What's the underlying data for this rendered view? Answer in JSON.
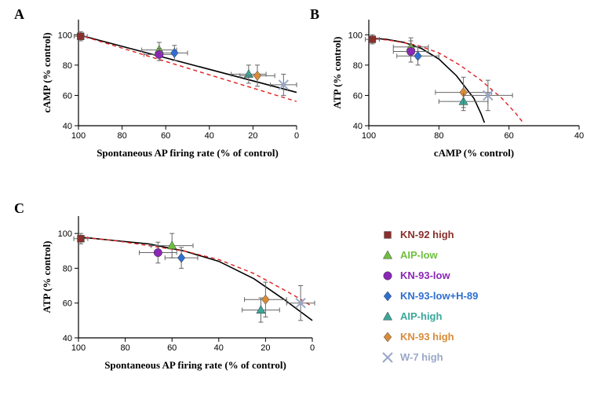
{
  "panels": {
    "A": "A",
    "B": "B",
    "C": "C"
  },
  "axis_label_fontsize": 13,
  "tick_fontsize": 11,
  "series": {
    "KN-92 high": {
      "label": "KN-92 high",
      "color": "#8a2f2b",
      "marker": "square",
      "size": 7
    },
    "AIP-low": {
      "label": "AIP-low",
      "color": "#6fbf3f",
      "marker": "triangle",
      "size": 7
    },
    "KN-93-low": {
      "label": "KN-93-low",
      "color": "#8b27b5",
      "marker": "circle",
      "size": 7
    },
    "KN-93-low+H-89": {
      "label": "KN-93-low+H-89",
      "color": "#2f6fd0",
      "marker": "diamond",
      "size": 6
    },
    "AIP-high": {
      "label": "AIP-high",
      "color": "#3aa79a",
      "marker": "triangle",
      "size": 7
    },
    "KN-93 high": {
      "label": "KN-93 high",
      "color": "#d98b3a",
      "marker": "diamond",
      "size": 6
    },
    "W-7 high": {
      "label": "W-7 high",
      "color": "#9aa7c7",
      "marker": "cross",
      "size": 6
    }
  },
  "legend_order": [
    "KN-92 high",
    "AIP-low",
    "KN-93-low",
    "KN-93-low+H-89",
    "AIP-high",
    "KN-93 high",
    "W-7 high"
  ],
  "chartA": {
    "xlabel": "Spontaneous AP firing rate (% of control)",
    "ylabel": "cAMP (% control)",
    "xlim": [
      100,
      0
    ],
    "ylim": [
      40,
      110
    ],
    "xticks": [
      100,
      80,
      60,
      40,
      20,
      0
    ],
    "yticks": [
      40,
      60,
      80,
      100
    ],
    "fit_solid": [
      [
        100,
        100
      ],
      [
        0,
        62
      ]
    ],
    "fit_dash": [
      [
        100,
        100
      ],
      [
        0,
        56
      ]
    ],
    "points": [
      {
        "s": "KN-92 high",
        "x": 99,
        "y": 99,
        "ex": 3,
        "ey": 3
      },
      {
        "s": "AIP-low",
        "x": 63,
        "y": 90,
        "ex": 8,
        "ey": 5
      },
      {
        "s": "KN-93-low",
        "x": 63,
        "y": 87,
        "ex": 7,
        "ey": 4
      },
      {
        "s": "KN-93-low+H-89",
        "x": 56,
        "y": 88,
        "ex": 6,
        "ey": 5
      },
      {
        "s": "AIP-high",
        "x": 22,
        "y": 74,
        "ex": 8,
        "ey": 6
      },
      {
        "s": "KN-93 high",
        "x": 18,
        "y": 73,
        "ex": 8,
        "ey": 7
      },
      {
        "s": "W-7 high",
        "x": 6,
        "y": 67,
        "ex": 6,
        "ey": 7
      }
    ]
  },
  "chartB": {
    "xlabel": "cAMP (% control)",
    "ylabel": "ATP (% control)",
    "xlim": [
      100,
      40
    ],
    "ylim": [
      40,
      110
    ],
    "xticks": [
      100,
      80,
      60,
      40
    ],
    "yticks": [
      40,
      60,
      80,
      100
    ],
    "fit_solid_curve": [
      [
        100,
        98
      ],
      [
        95,
        97
      ],
      [
        90,
        95
      ],
      [
        85,
        91
      ],
      [
        80,
        84
      ],
      [
        75,
        73
      ],
      [
        70,
        58
      ],
      [
        68,
        48
      ],
      [
        67,
        42
      ]
    ],
    "fit_dash_curve": [
      [
        100,
        98
      ],
      [
        93,
        96
      ],
      [
        86,
        93
      ],
      [
        80,
        88
      ],
      [
        74,
        80
      ],
      [
        68,
        70
      ],
      [
        62,
        58
      ],
      [
        58,
        48
      ],
      [
        56,
        42
      ]
    ],
    "points": [
      {
        "s": "KN-92 high",
        "x": 99,
        "y": 97,
        "ex": 2,
        "ey": 3
      },
      {
        "s": "AIP-low",
        "x": 88,
        "y": 92,
        "ex": 5,
        "ey": 6
      },
      {
        "s": "KN-93-low",
        "x": 88,
        "y": 89,
        "ex": 5,
        "ey": 7
      },
      {
        "s": "KN-93-low+H-89",
        "x": 86,
        "y": 86,
        "ex": 6,
        "ey": 6
      },
      {
        "s": "AIP-high",
        "x": 73,
        "y": 56,
        "ex": 7,
        "ey": 6
      },
      {
        "s": "KN-93 high",
        "x": 73,
        "y": 62,
        "ex": 8,
        "ey": 10
      },
      {
        "s": "W-7 high",
        "x": 66,
        "y": 60,
        "ex": 7,
        "ey": 10
      }
    ]
  },
  "chartC": {
    "xlabel": "Spontaneous AP firing rate (% of control)",
    "ylabel": "ATP (% control)",
    "xlim": [
      100,
      0
    ],
    "ylim": [
      40,
      110
    ],
    "xticks": [
      100,
      80,
      60,
      40,
      20,
      0
    ],
    "yticks": [
      40,
      60,
      80,
      100
    ],
    "fit_solid_curve": [
      [
        100,
        98
      ],
      [
        85,
        96
      ],
      [
        70,
        94
      ],
      [
        55,
        90
      ],
      [
        40,
        84
      ],
      [
        25,
        74
      ],
      [
        12,
        62
      ],
      [
        4,
        54
      ],
      [
        0,
        50
      ]
    ],
    "fit_dash_curve": [
      [
        100,
        98
      ],
      [
        85,
        96
      ],
      [
        70,
        93
      ],
      [
        55,
        90
      ],
      [
        40,
        85
      ],
      [
        25,
        77
      ],
      [
        14,
        69
      ],
      [
        6,
        63
      ],
      [
        0,
        58
      ]
    ],
    "points": [
      {
        "s": "KN-92 high",
        "x": 99,
        "y": 97,
        "ex": 3,
        "ey": 3
      },
      {
        "s": "AIP-low",
        "x": 60,
        "y": 93,
        "ex": 9,
        "ey": 7
      },
      {
        "s": "KN-93-low",
        "x": 66,
        "y": 89,
        "ex": 8,
        "ey": 6
      },
      {
        "s": "KN-93-low+H-89",
        "x": 56,
        "y": 86,
        "ex": 7,
        "ey": 6
      },
      {
        "s": "AIP-high",
        "x": 22,
        "y": 56,
        "ex": 8,
        "ey": 7
      },
      {
        "s": "KN-93 high",
        "x": 20,
        "y": 62,
        "ex": 9,
        "ey": 10
      },
      {
        "s": "W-7 high",
        "x": 5,
        "y": 60,
        "ex": 6,
        "ey": 10
      }
    ]
  }
}
